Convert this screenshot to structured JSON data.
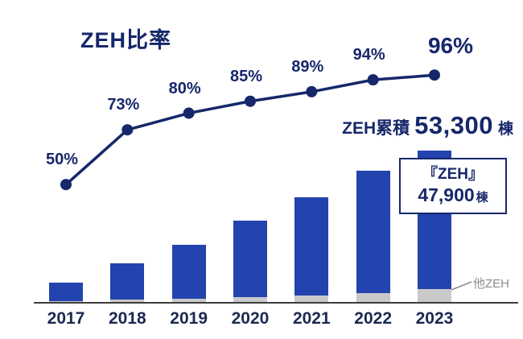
{
  "colors": {
    "navy": "#16276b",
    "bar_blue": "#2343ae",
    "bar_gray": "#c9c9c9",
    "axis": "#3d3d3d",
    "other_gray": "#8c8c8c"
  },
  "title": "ZEH比率",
  "cumulative": {
    "prefix": "ZEH累積",
    "value": "53,300",
    "unit": "棟"
  },
  "callout": {
    "line1": "『ZEH』",
    "value": "47,900",
    "unit": "棟"
  },
  "other_label": "他ZEH",
  "chart_data": {
    "type": "combo",
    "categories": [
      "2017",
      "2018",
      "2019",
      "2020",
      "2021",
      "2022",
      "2023"
    ],
    "line_series": {
      "name": "ZEH比率",
      "unit": "%",
      "values": [
        50,
        73,
        80,
        85,
        89,
        94,
        96
      ]
    },
    "bar_series": [
      {
        "name": "『ZEH』",
        "color_key": "bar_blue",
        "values_rel": [
          23,
          45,
          67,
          95,
          122,
          152,
          172
        ]
      },
      {
        "name": "他ZEH",
        "color_key": "bar_gray",
        "values_rel": [
          3,
          5,
          6,
          8,
          10,
          13,
          18
        ]
      }
    ],
    "annotations": {
      "cumulative_total": "ZEH累積 53,300棟",
      "zeh_total": "『ZEH』47,900棟",
      "other_segment": "他ZEH"
    },
    "axis": {
      "y_axis_visible": false,
      "x_labels_visible": true,
      "gridlines": false
    }
  }
}
